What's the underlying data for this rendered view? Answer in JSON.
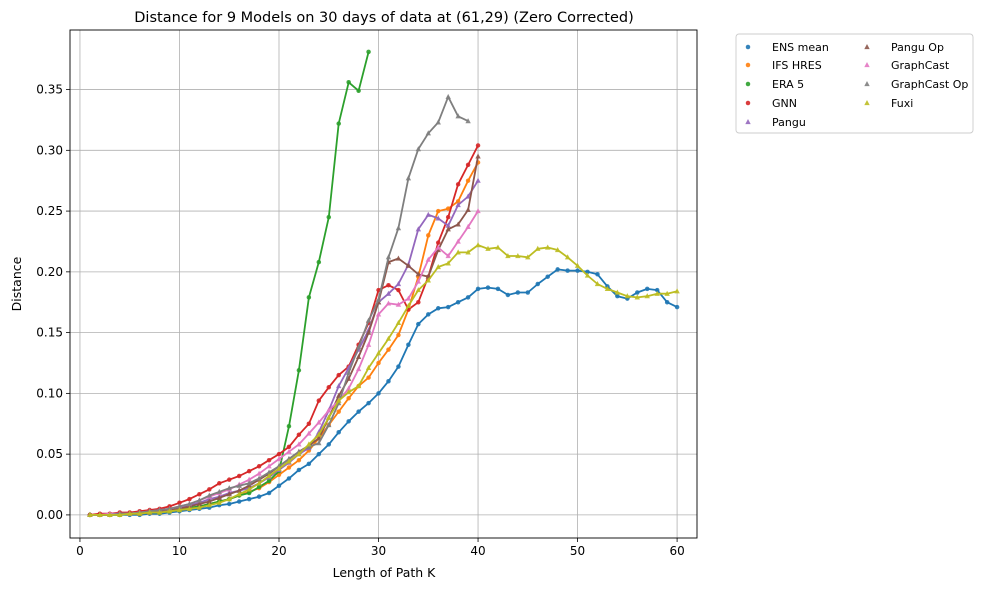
{
  "chart_data": {
    "type": "line",
    "title": "Distance for 9 Models on 30 days of data at (61,29) (Zero Corrected)",
    "xlabel": "Length of Path K",
    "ylabel": "Distance",
    "xlim": [
      -1,
      62
    ],
    "ylim": [
      -0.019,
      0.399
    ],
    "xticks": [
      0,
      10,
      20,
      30,
      40,
      50,
      60
    ],
    "yticks": [
      0.0,
      0.05,
      0.1,
      0.15,
      0.2,
      0.25,
      0.3,
      0.35
    ],
    "ytick_labels": [
      "0.00",
      "0.05",
      "0.10",
      "0.15",
      "0.20",
      "0.25",
      "0.30",
      "0.35"
    ],
    "grid": true,
    "legend_position": "outside top-right",
    "legend_columns": 2,
    "series": [
      {
        "name": "ENS mean",
        "color": "#1f77b4",
        "marker": "circle",
        "x_start": 1,
        "values": [
          0.0,
          0.0,
          0.0,
          0.0,
          0.0,
          0.0,
          0.001,
          0.001,
          0.002,
          0.003,
          0.004,
          0.005,
          0.006,
          0.008,
          0.009,
          0.011,
          0.013,
          0.015,
          0.018,
          0.024,
          0.03,
          0.037,
          0.042,
          0.05,
          0.058,
          0.068,
          0.077,
          0.085,
          0.092,
          0.1,
          0.11,
          0.122,
          0.14,
          0.157,
          0.165,
          0.17,
          0.171,
          0.175,
          0.179,
          0.186,
          0.187,
          0.186,
          0.181,
          0.183,
          0.183,
          0.19,
          0.196,
          0.202,
          0.201,
          0.201,
          0.2,
          0.198,
          0.188,
          0.18,
          0.178,
          0.183,
          0.186,
          0.185,
          0.175,
          0.171
        ]
      },
      {
        "name": "IFS HRES",
        "color": "#ff7f0e",
        "marker": "circle",
        "x_start": 1,
        "values": [
          0.0,
          0.0,
          0.0,
          0.001,
          0.001,
          0.001,
          0.002,
          0.002,
          0.003,
          0.004,
          0.005,
          0.007,
          0.009,
          0.011,
          0.013,
          0.016,
          0.019,
          0.022,
          0.027,
          0.033,
          0.039,
          0.045,
          0.053,
          0.063,
          0.074,
          0.085,
          0.096,
          0.106,
          0.113,
          0.125,
          0.136,
          0.148,
          0.169,
          0.196,
          0.23,
          0.25,
          0.252,
          0.258,
          0.275,
          0.29
        ]
      },
      {
        "name": "ERA 5",
        "color": "#2ca02c",
        "marker": "circle",
        "x_start": 1,
        "values": [
          0.0,
          0.0,
          0.0,
          0.0,
          0.001,
          0.001,
          0.002,
          0.002,
          0.003,
          0.004,
          0.006,
          0.007,
          0.009,
          0.011,
          0.013,
          0.016,
          0.018,
          0.023,
          0.028,
          0.036,
          0.073,
          0.119,
          0.179,
          0.208,
          0.245,
          0.322,
          0.356,
          0.349,
          0.381
        ]
      },
      {
        "name": "GNN",
        "color": "#d62728",
        "marker": "circle",
        "x_start": 1,
        "values": [
          0.0,
          0.001,
          0.001,
          0.002,
          0.002,
          0.003,
          0.004,
          0.005,
          0.007,
          0.01,
          0.013,
          0.017,
          0.021,
          0.026,
          0.029,
          0.032,
          0.036,
          0.04,
          0.045,
          0.05,
          0.056,
          0.066,
          0.075,
          0.094,
          0.105,
          0.115,
          0.122,
          0.14,
          0.158,
          0.185,
          0.189,
          0.185,
          0.169,
          0.175,
          0.196,
          0.224,
          0.245,
          0.272,
          0.288,
          0.304
        ]
      },
      {
        "name": "Pangu",
        "color": "#9467bd",
        "marker": "triangle",
        "x_start": 1,
        "values": [
          0.0,
          0.0,
          0.0,
          0.001,
          0.001,
          0.002,
          0.002,
          0.003,
          0.004,
          0.006,
          0.008,
          0.01,
          0.013,
          0.015,
          0.018,
          0.02,
          0.022,
          0.026,
          0.031,
          0.037,
          0.043,
          0.05,
          0.055,
          0.068,
          0.086,
          0.106,
          0.121,
          0.136,
          0.152,
          0.175,
          0.182,
          0.19,
          0.206,
          0.235,
          0.247,
          0.244,
          0.238,
          0.255,
          0.262,
          0.275
        ]
      },
      {
        "name": "Pangu Op",
        "color": "#8c564b",
        "marker": "triangle",
        "x_start": 1,
        "values": [
          0.0,
          0.0,
          0.0,
          0.001,
          0.001,
          0.001,
          0.002,
          0.003,
          0.004,
          0.005,
          0.007,
          0.009,
          0.011,
          0.014,
          0.017,
          0.02,
          0.024,
          0.029,
          0.034,
          0.04,
          0.046,
          0.052,
          0.057,
          0.063,
          0.08,
          0.098,
          0.112,
          0.13,
          0.15,
          0.175,
          0.208,
          0.211,
          0.205,
          0.198,
          0.196,
          0.218,
          0.235,
          0.239,
          0.251,
          0.295
        ]
      },
      {
        "name": "GraphCast",
        "color": "#e377c2",
        "marker": "triangle",
        "x_start": 1,
        "values": [
          0.0,
          0.0,
          0.001,
          0.001,
          0.001,
          0.002,
          0.003,
          0.004,
          0.005,
          0.007,
          0.009,
          0.012,
          0.015,
          0.018,
          0.021,
          0.025,
          0.029,
          0.034,
          0.04,
          0.046,
          0.052,
          0.058,
          0.067,
          0.076,
          0.086,
          0.094,
          0.104,
          0.12,
          0.14,
          0.165,
          0.174,
          0.173,
          0.178,
          0.192,
          0.21,
          0.22,
          0.213,
          0.225,
          0.237,
          0.25
        ]
      },
      {
        "name": "GraphCast Op",
        "color": "#7f7f7f",
        "marker": "triangle",
        "x_start": 1,
        "values": [
          0.0,
          0.0,
          0.0,
          0.001,
          0.001,
          0.002,
          0.003,
          0.004,
          0.005,
          0.007,
          0.009,
          0.012,
          0.016,
          0.019,
          0.022,
          0.024,
          0.026,
          0.03,
          0.035,
          0.04,
          0.046,
          0.052,
          0.056,
          0.059,
          0.074,
          0.092,
          0.117,
          0.138,
          0.16,
          0.177,
          0.212,
          0.236,
          0.277,
          0.301,
          0.314,
          0.323,
          0.344,
          0.328,
          0.324
        ]
      },
      {
        "name": "Fuxi",
        "color": "#bcbd22",
        "marker": "triangle",
        "x_start": 1,
        "values": [
          0.0,
          0.0,
          0.0,
          0.0,
          0.001,
          0.001,
          0.002,
          0.002,
          0.003,
          0.004,
          0.005,
          0.006,
          0.008,
          0.01,
          0.013,
          0.017,
          0.021,
          0.026,
          0.032,
          0.038,
          0.044,
          0.05,
          0.058,
          0.066,
          0.08,
          0.094,
          0.101,
          0.106,
          0.121,
          0.133,
          0.145,
          0.158,
          0.172,
          0.185,
          0.193,
          0.204,
          0.207,
          0.216,
          0.216,
          0.222,
          0.219,
          0.22,
          0.213,
          0.213,
          0.212,
          0.219,
          0.22,
          0.218,
          0.212,
          0.205,
          0.197,
          0.19,
          0.186,
          0.183,
          0.18,
          0.179,
          0.18,
          0.182,
          0.182,
          0.184
        ]
      }
    ]
  }
}
